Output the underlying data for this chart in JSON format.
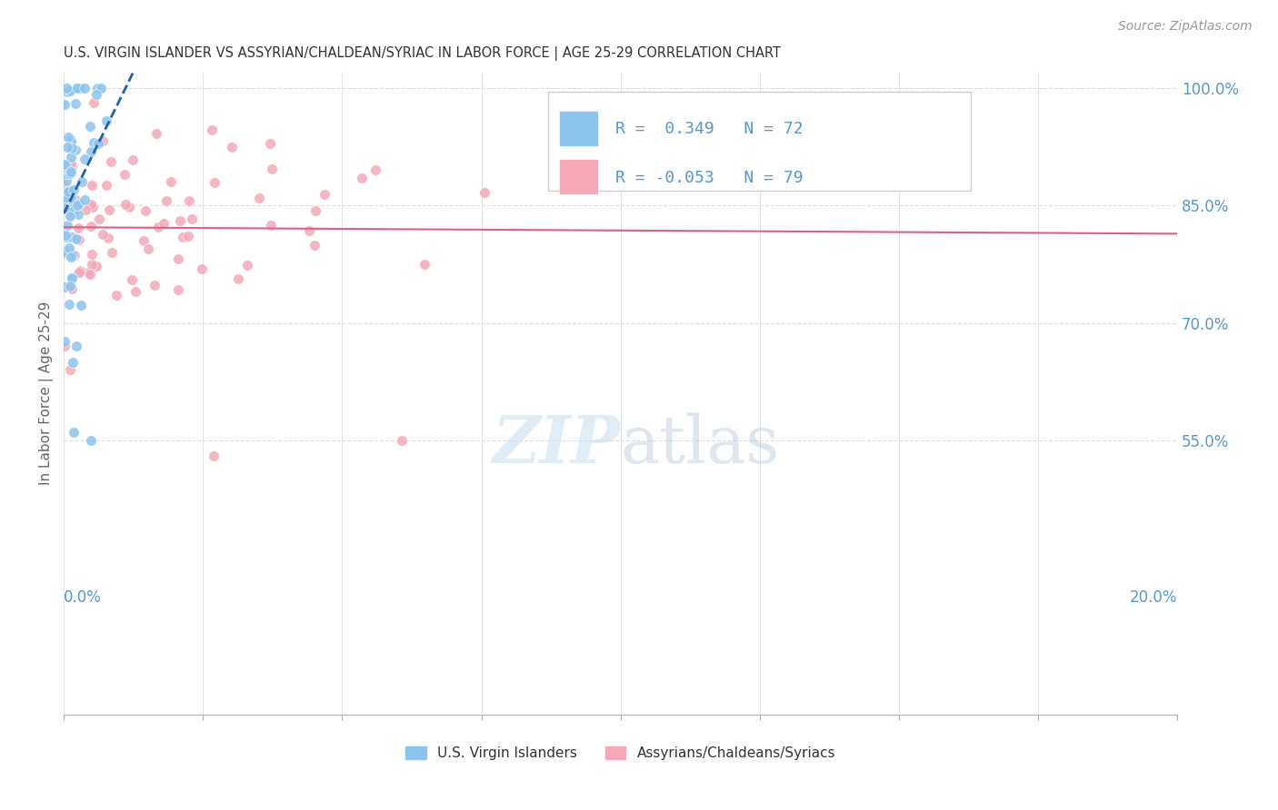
{
  "title": "U.S. VIRGIN ISLANDER VS ASSYRIAN/CHALDEAN/SYRIAC IN LABOR FORCE | AGE 25-29 CORRELATION CHART",
  "source": "Source: ZipAtlas.com",
  "ylabel": "In Labor Force | Age 25-29",
  "legend_label_blue": "U.S. Virgin Islanders",
  "legend_label_pink": "Assyrians/Chaldeans/Syriacs",
  "R_blue": 0.349,
  "N_blue": 72,
  "R_pink": -0.053,
  "N_pink": 79,
  "blue_color": "#8DC4ED",
  "pink_color": "#F4A8B8",
  "blue_line_color": "#2060B0",
  "pink_line_color": "#E06080",
  "background_color": "#FFFFFF",
  "grid_color": "#DDDDDD",
  "title_color": "#333333",
  "axis_label_color": "#5599CC",
  "xmin": 0.0,
  "xmax": 0.2,
  "ymin": 0.2,
  "ymax": 1.02,
  "yticks": [
    0.55,
    0.7,
    0.85,
    1.0
  ],
  "ytick_labels": [
    "55.0%",
    "70.0%",
    "85.0%",
    "100.0%"
  ]
}
